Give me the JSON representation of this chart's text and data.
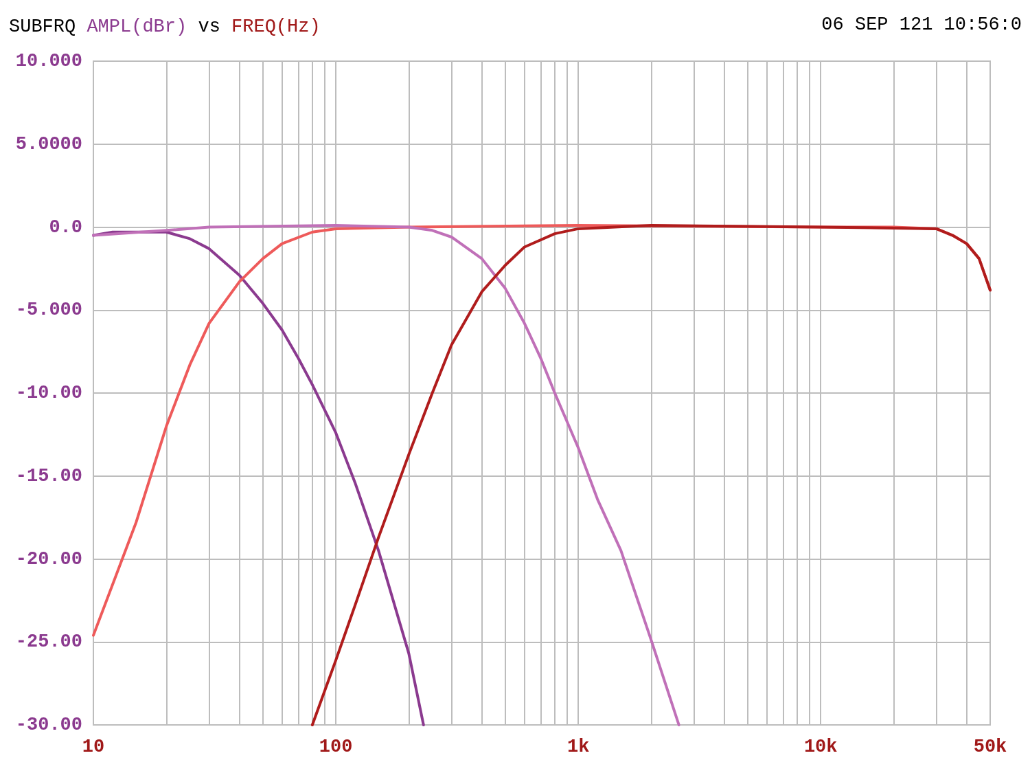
{
  "chart_data": {
    "type": "line",
    "title": "SUBFRQ AMPL(dBr) vs FREQ(Hz)",
    "annotations": [
      "06 SEP 121 10:56:0"
    ],
    "log": "x",
    "grid": true,
    "xlim": [
      10,
      50000
    ],
    "xticks": [
      10,
      {
        "value": 20,
        "label": null
      },
      {
        "value": 30,
        "label": null
      },
      {
        "value": 40,
        "label": null
      },
      {
        "value": 50,
        "label": null
      },
      {
        "value": 60,
        "label": null
      },
      {
        "value": 70,
        "label": null
      },
      {
        "value": 80,
        "label": null
      },
      {
        "value": 90,
        "label": null
      },
      100,
      {
        "value": 200,
        "label": null
      },
      {
        "value": 300,
        "label": null
      },
      {
        "value": 400,
        "label": null
      },
      {
        "value": 500,
        "label": null
      },
      {
        "value": 600,
        "label": null
      },
      {
        "value": 700,
        "label": null
      },
      {
        "value": 800,
        "label": null
      },
      {
        "value": 900,
        "label": null
      },
      {
        "value": 1000,
        "label": "1k"
      },
      {
        "value": 2000,
        "label": null
      },
      {
        "value": 3000,
        "label": null
      },
      {
        "value": 4000,
        "label": null
      },
      {
        "value": 5000,
        "label": null
      },
      {
        "value": 6000,
        "label": null
      },
      {
        "value": 7000,
        "label": null
      },
      {
        "value": 8000,
        "label": null
      },
      {
        "value": 9000,
        "label": null
      },
      {
        "value": 10000,
        "label": "10k"
      },
      {
        "value": 20000,
        "label": null
      },
      {
        "value": 30000,
        "label": null
      },
      {
        "value": 40000,
        "label": null
      },
      {
        "value": 50000,
        "label": "50k"
      }
    ],
    "ylim": [
      -30,
      10
    ],
    "yticks": [
      {
        "value": -30,
        "label": "-30.00"
      },
      {
        "value": -25,
        "label": "-25.00"
      },
      {
        "value": -20,
        "label": "-20.00"
      },
      {
        "value": -15,
        "label": "-15.00"
      },
      {
        "value": -10,
        "label": "-10.00"
      },
      {
        "value": -5,
        "label": "-5.000"
      },
      {
        "value": 0,
        "label": "0.0"
      },
      {
        "value": 5,
        "label": "5.0000"
      },
      {
        "value": 10,
        "label": "10.000"
      }
    ],
    "series": [
      {
        "color": "#8b3a8f",
        "x": [
          10,
          12,
          20,
          25,
          30,
          40,
          50,
          60,
          70,
          80,
          100,
          120,
          150,
          200,
          230
        ],
        "values": [
          -0.5,
          -0.3,
          -0.3,
          -0.7,
          -1.3,
          -2.9,
          -4.6,
          -6.2,
          -7.9,
          -9.5,
          -12.4,
          -15.4,
          -19.5,
          -25.7,
          -30
        ]
      },
      {
        "color": "#ee5a5a",
        "x": [
          10,
          15,
          20,
          25,
          30,
          40,
          50,
          60,
          80,
          100,
          200,
          1000,
          10000,
          20000,
          30000,
          35000,
          40000,
          45000,
          50000
        ],
        "values": [
          -24.6,
          -17.8,
          -12,
          -8.3,
          -5.8,
          -3.3,
          -1.9,
          -1,
          -0.3,
          -0.1,
          0,
          0.1,
          0,
          0,
          -0.1,
          -0.5,
          -1,
          -1.9,
          -3.8
        ]
      },
      {
        "color": "#c070b8",
        "x": [
          10,
          20,
          30,
          100,
          200,
          250,
          300,
          400,
          500,
          600,
          700,
          800,
          1000,
          1200,
          1500,
          2000,
          2600
        ],
        "values": [
          -0.5,
          -0.2,
          0,
          0.1,
          0,
          -0.2,
          -0.6,
          -1.9,
          -3.7,
          -5.8,
          -7.9,
          -10,
          -13.3,
          -16.4,
          -19.5,
          -24.9,
          -30
        ]
      },
      {
        "color": "#b01c1c",
        "x": [
          80,
          100,
          120,
          150,
          200,
          250,
          300,
          400,
          500,
          600,
          800,
          1000,
          2000,
          10000,
          30000,
          35000,
          40000,
          45000,
          50000
        ],
        "values": [
          -30,
          -26.1,
          -22.8,
          -18.7,
          -13.7,
          -10,
          -7.1,
          -3.9,
          -2.3,
          -1.2,
          -0.4,
          -0.1,
          0.1,
          0,
          -0.1,
          -0.5,
          -1,
          -1.9,
          -3.8
        ]
      }
    ]
  }
}
